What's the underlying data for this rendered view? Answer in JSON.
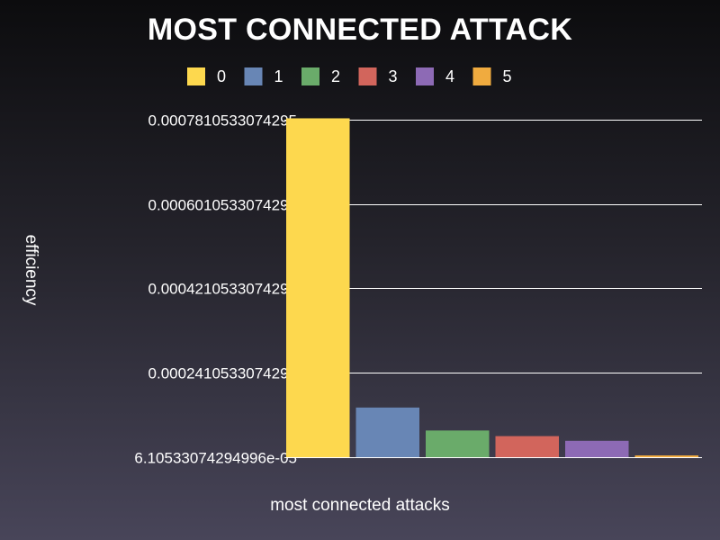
{
  "chart_data": {
    "type": "bar",
    "title": "MOST CONNECTED ATTACK",
    "xlabel": "most connected attacks",
    "ylabel": "efficiency",
    "ylim": [
      6.10533074294996e-05,
      0.0007810533074295
    ],
    "yticks": [
      {
        "value": 6.10533074294996e-05,
        "label": "6.10533074294996e-05"
      },
      {
        "value": 0.0002410533074295,
        "label": "0.0002410533074295"
      },
      {
        "value": 0.0004210533074295,
        "label": "0.0004210533074295"
      },
      {
        "value": 0.0006010533074295,
        "label": "0.0006010533074295"
      },
      {
        "value": 0.0007810533074295,
        "label": "0.0007810533074295"
      }
    ],
    "grid": true,
    "legend_position": "top",
    "series": [
      {
        "name": "0",
        "value": 0.000784,
        "color": "#fdd84e"
      },
      {
        "name": "1",
        "value": 0.000167,
        "color": "#6886b5"
      },
      {
        "name": "2",
        "value": 0.000118,
        "color": "#6aab6a"
      },
      {
        "name": "3",
        "value": 0.000106,
        "color": "#d2655c"
      },
      {
        "name": "4",
        "value": 9.6e-05,
        "color": "#8d6ab5"
      },
      {
        "name": "5",
        "value": 6.4e-05,
        "color": "#f0ab3f"
      }
    ]
  }
}
